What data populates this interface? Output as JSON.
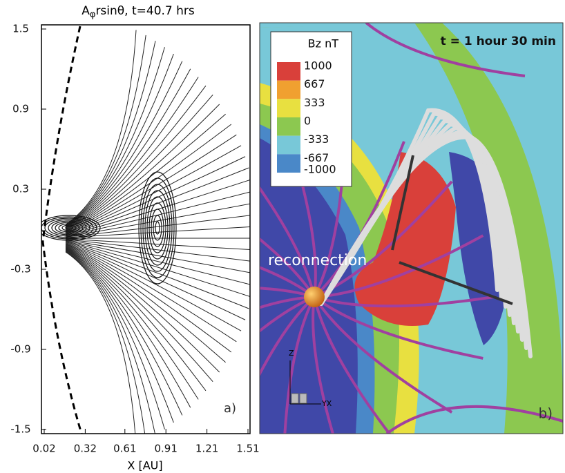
{
  "chart_data": [
    {
      "type": "contour",
      "title_parts": [
        "A",
        "φ",
        "rsinθ, t=40.7 hrs"
      ],
      "xlabel": "X [AU]",
      "xlim": [
        0.02,
        1.51
      ],
      "xticks": [
        0.02,
        0.32,
        0.61,
        0.91,
        1.21,
        1.51
      ],
      "ylim": [
        -1.5,
        1.5
      ],
      "yticks": [
        1.5,
        0.9,
        0.3,
        -0.3,
        -0.9,
        -1.5
      ],
      "panel_label": "a)"
    },
    {
      "type": "field-map",
      "title": "t = 1 hour 30 min",
      "annotation": "reconnection",
      "panel_label": "b)",
      "axis_labels": [
        "Z",
        "YX"
      ],
      "colorbar": {
        "title": "Bz nT",
        "levels": [
          1000,
          667,
          333,
          0,
          -333,
          -667,
          -1000
        ],
        "colors": [
          "#d9403a",
          "#f0a030",
          "#e8e040",
          "#8cc850",
          "#78c8d8",
          "#4a88c8",
          "#4048a8"
        ]
      }
    }
  ]
}
